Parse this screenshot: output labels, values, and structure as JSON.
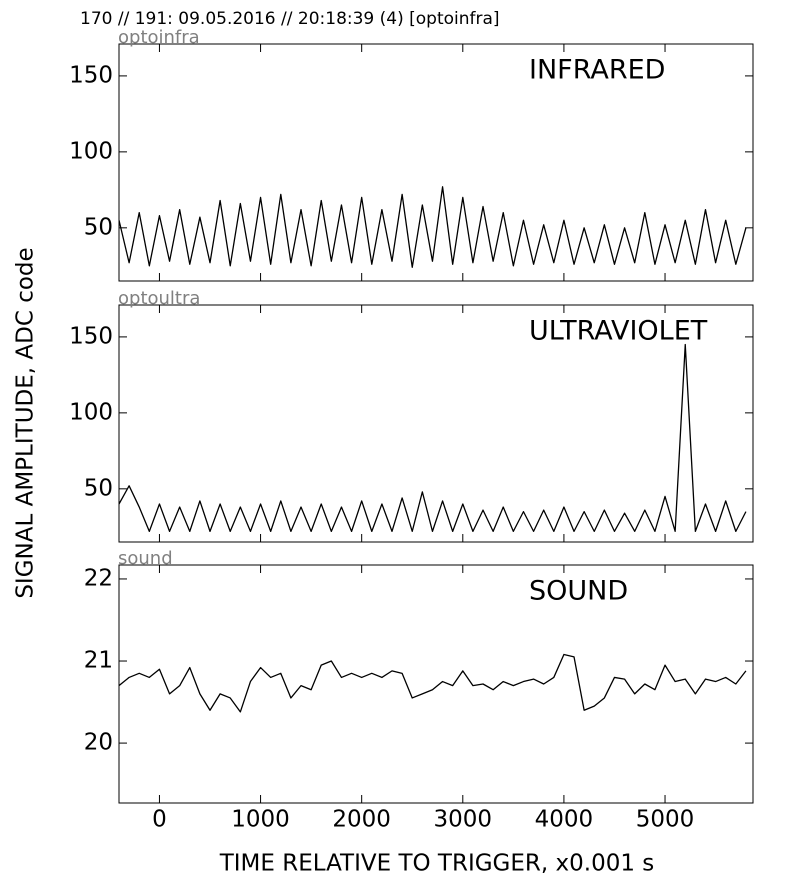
{
  "header": "170 // 191:   09.05.2016 // 20:18:39 (4)  [optoinfra]",
  "ylabel": "SIGNAL AMPLITUDE,  ADC code",
  "xlabel": "TIME RELATIVE TO TRIGGER,   x0.001 s",
  "chart_data": [
    {
      "type": "line",
      "subtitle": "optoinfra",
      "title": "INFRARED",
      "color": "#000000",
      "xlim": [
        -400,
        5870
      ],
      "xticks": [
        0,
        1000,
        2000,
        3000,
        4000,
        5000
      ],
      "ylim": [
        15,
        171
      ],
      "yticks": [
        50,
        100,
        150
      ],
      "x": [
        -400,
        -300,
        -200,
        -100,
        0,
        100,
        200,
        300,
        400,
        500,
        600,
        700,
        800,
        900,
        1000,
        1100,
        1200,
        1300,
        1400,
        1500,
        1600,
        1700,
        1800,
        1900,
        2000,
        2100,
        2200,
        2300,
        2400,
        2500,
        2600,
        2700,
        2800,
        2900,
        3000,
        3100,
        3200,
        3300,
        3400,
        3500,
        3600,
        3700,
        3800,
        3900,
        4000,
        4100,
        4200,
        4300,
        4400,
        4500,
        4600,
        4700,
        4800,
        4900,
        5000,
        5100,
        5200,
        5300,
        5400,
        5500,
        5600,
        5700,
        5800
      ],
      "values": [
        55,
        27,
        60,
        25,
        58,
        28,
        62,
        26,
        57,
        27,
        68,
        25,
        66,
        28,
        70,
        26,
        72,
        27,
        62,
        25,
        68,
        28,
        65,
        27,
        70,
        26,
        62,
        28,
        72,
        24,
        65,
        28,
        77,
        26,
        70,
        27,
        64,
        28,
        60,
        25,
        55,
        26,
        52,
        27,
        55,
        26,
        50,
        27,
        52,
        26,
        50,
        27,
        60,
        26,
        52,
        27,
        55,
        26,
        62,
        27,
        55,
        26,
        50
      ]
    },
    {
      "type": "line",
      "subtitle": "optoultra",
      "title": "ULTRAVIOLET",
      "color": "#000000",
      "xlim": [
        -400,
        5870
      ],
      "xticks": [
        0,
        1000,
        2000,
        3000,
        4000,
        5000
      ],
      "ylim": [
        15,
        171
      ],
      "yticks": [
        50,
        100,
        150
      ],
      "x": [
        -400,
        -300,
        -200,
        -100,
        0,
        100,
        200,
        300,
        400,
        500,
        600,
        700,
        800,
        900,
        1000,
        1100,
        1200,
        1300,
        1400,
        1500,
        1600,
        1700,
        1800,
        1900,
        2000,
        2100,
        2200,
        2300,
        2400,
        2500,
        2600,
        2700,
        2800,
        2900,
        3000,
        3100,
        3200,
        3300,
        3400,
        3500,
        3600,
        3700,
        3800,
        3900,
        4000,
        4100,
        4200,
        4300,
        4400,
        4500,
        4600,
        4700,
        4800,
        4900,
        5000,
        5100,
        5200,
        5300,
        5400,
        5500,
        5600,
        5700,
        5800
      ],
      "values": [
        40,
        52,
        38,
        22,
        40,
        22,
        38,
        22,
        42,
        22,
        40,
        22,
        38,
        22,
        40,
        22,
        42,
        22,
        38,
        22,
        40,
        22,
        38,
        22,
        42,
        22,
        40,
        22,
        44,
        22,
        48,
        22,
        42,
        22,
        40,
        22,
        36,
        22,
        38,
        22,
        35,
        22,
        36,
        22,
        38,
        22,
        35,
        22,
        36,
        22,
        34,
        22,
        36,
        22,
        45,
        22,
        145,
        22,
        40,
        22,
        42,
        22,
        35
      ]
    },
    {
      "type": "line",
      "subtitle": "sound",
      "title": "SOUND",
      "color": "#000000",
      "xlim": [
        -400,
        5870
      ],
      "xticks": [
        0,
        1000,
        2000,
        3000,
        4000,
        5000
      ],
      "ylim": [
        19.27,
        22.17
      ],
      "yticks": [
        20,
        21,
        22
      ],
      "x": [
        -400,
        -300,
        -200,
        -100,
        0,
        100,
        200,
        300,
        400,
        500,
        600,
        700,
        800,
        900,
        1000,
        1100,
        1200,
        1300,
        1400,
        1500,
        1600,
        1700,
        1800,
        1900,
        2000,
        2100,
        2200,
        2300,
        2400,
        2500,
        2600,
        2700,
        2800,
        2900,
        3000,
        3100,
        3200,
        3300,
        3400,
        3500,
        3600,
        3700,
        3800,
        3900,
        4000,
        4100,
        4200,
        4300,
        4400,
        4500,
        4600,
        4700,
        4800,
        4900,
        5000,
        5100,
        5200,
        5300,
        5400,
        5500,
        5600,
        5700,
        5800
      ],
      "values": [
        20.7,
        20.8,
        20.85,
        20.8,
        20.9,
        20.6,
        20.7,
        20.92,
        20.6,
        20.4,
        20.6,
        20.55,
        20.38,
        20.75,
        20.92,
        20.8,
        20.85,
        20.55,
        20.7,
        20.65,
        20.95,
        21.0,
        20.8,
        20.85,
        20.8,
        20.85,
        20.8,
        20.88,
        20.85,
        20.55,
        20.6,
        20.65,
        20.75,
        20.7,
        20.88,
        20.7,
        20.72,
        20.65,
        20.75,
        20.7,
        20.75,
        20.78,
        20.72,
        20.8,
        21.08,
        21.05,
        20.4,
        20.45,
        20.55,
        20.8,
        20.78,
        20.6,
        20.72,
        20.65,
        20.95,
        20.75,
        20.78,
        20.6,
        20.78,
        20.75,
        20.8,
        20.72,
        20.88
      ]
    }
  ]
}
